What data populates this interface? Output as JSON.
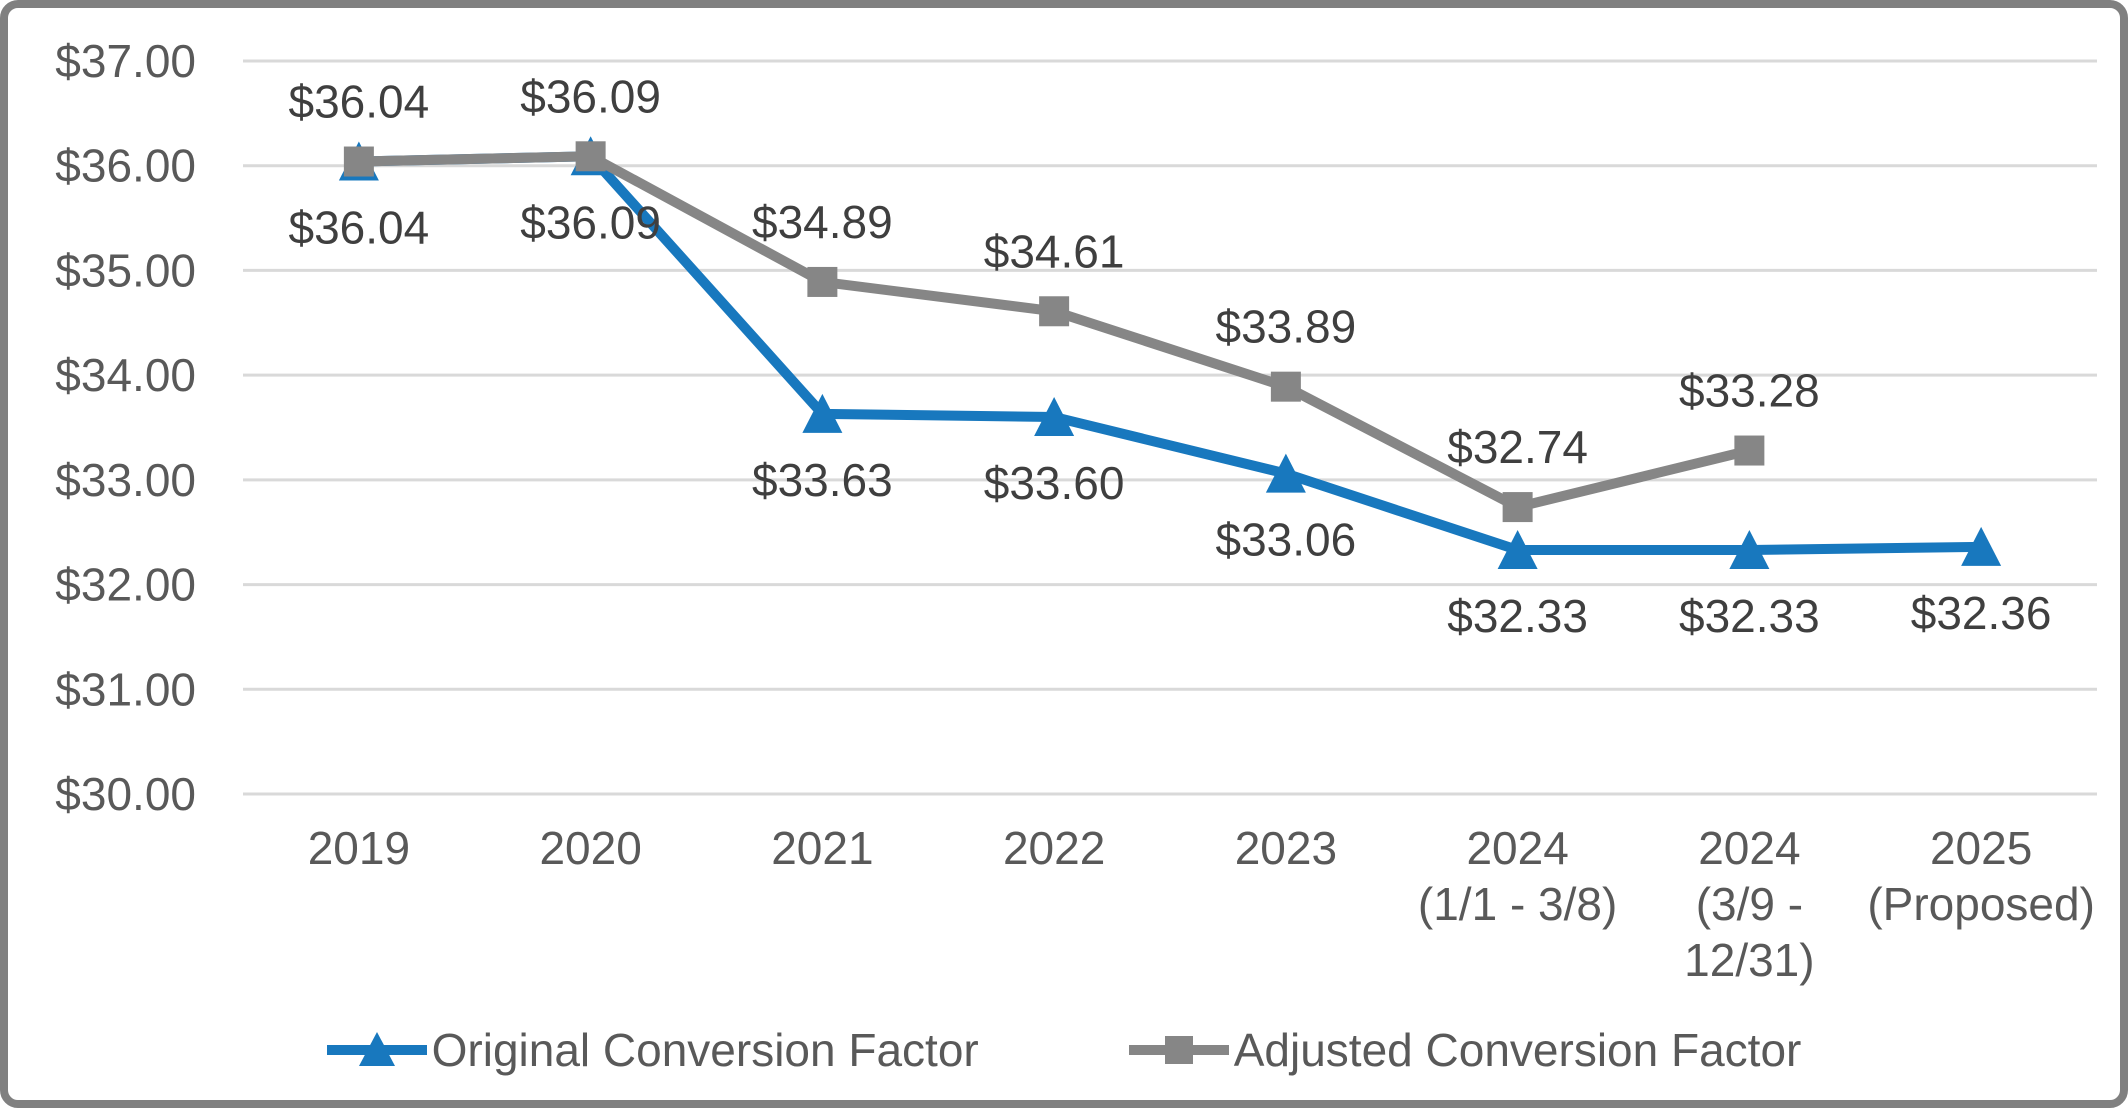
{
  "chart_data": {
    "type": "line",
    "title": "",
    "categories": [
      [
        "2019"
      ],
      [
        "2020"
      ],
      [
        "2021"
      ],
      [
        "2022"
      ],
      [
        "2023"
      ],
      [
        "2024",
        "(1/1 - 3/8)"
      ],
      [
        "2024",
        "(3/9 -",
        "12/31)"
      ],
      [
        "2025",
        "(Proposed)"
      ]
    ],
    "series": [
      {
        "name": "Original Conversion Factor",
        "color": "#1878BE",
        "marker": "triangle",
        "label_position": "below",
        "values": [
          36.04,
          36.09,
          33.63,
          33.6,
          33.06,
          32.33,
          32.33,
          32.36
        ],
        "data_labels": [
          "$36.04",
          "$36.09",
          "$33.63",
          "$33.60",
          "$33.06",
          "$32.33",
          "$32.33",
          "$32.36"
        ]
      },
      {
        "name": "Adjusted Conversion Factor",
        "color": "#868686",
        "marker": "square",
        "label_position": "above",
        "values": [
          36.04,
          36.09,
          34.89,
          34.61,
          33.89,
          32.74,
          33.28,
          null
        ],
        "data_labels": [
          "$36.04",
          "$36.09",
          "$34.89",
          "$34.61",
          "$33.89",
          "$32.74",
          "$33.28",
          null
        ]
      }
    ],
    "y_axis": {
      "min": 30,
      "max": 37,
      "step": 1,
      "tick_labels": [
        "$30.00",
        "$31.00",
        "$32.00",
        "$33.00",
        "$34.00",
        "$35.00",
        "$36.00",
        "$37.00"
      ]
    },
    "x_axis": {
      "label": ""
    },
    "grid": true,
    "legend_position": "bottom"
  },
  "colors": {
    "background": "#FFFFFF",
    "border": "#808080",
    "gridline": "#D9D9D9",
    "axis_text": "#595959",
    "data_label_text": "#3F3F3F",
    "legend_text": "#595959"
  }
}
